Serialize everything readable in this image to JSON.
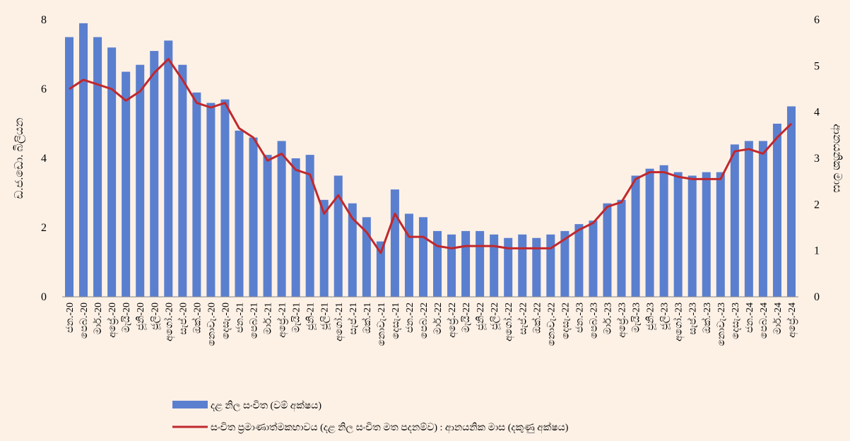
{
  "chart_data": {
    "type": "bar_line",
    "categories": [
      "ජන.-20",
      "පෙබ.-20",
      "මාර්.-20",
      "අප්‍රේ.-20",
      "මැයි-20",
      "ජූනි-20",
      "ජූලි-20",
      "අගෝ.-20",
      "සැප්.-20",
      "ඔක්.-20",
      "නොවැ.-20",
      "දෙසැ.-20",
      "ජන.-21",
      "පෙබ.-21",
      "මාර්.-21",
      "අප්‍රේ.-21",
      "මැයි-21",
      "ජූනි-21",
      "ජූලි-21",
      "අගෝ.-21",
      "සැප්.-21",
      "ඔක්.-21",
      "නොවැ.-21",
      "දෙසැ.-21",
      "ජන.-22",
      "පෙබ.-22",
      "මාර්.-22",
      "අප්‍රේ.-22",
      "මැයි-22",
      "ජූනි-22",
      "ජූලි-22",
      "අගෝ.-22",
      "සැප්.-22",
      "ඔක්.-22",
      "නොවැ.-22",
      "දෙසැ.-22",
      "ජන.-23",
      "පෙබ.-23",
      "මාර්.-23",
      "අප්‍රේ.-23",
      "මැයි-23",
      "ජූනි-23",
      "ජූලි-23",
      "අගෝ.-23",
      "සැප්.-23",
      "ඔක්.-23",
      "නොවැ.-23",
      "දෙසැ.-23",
      "ජන.-24",
      "පෙබ.-24",
      "මාර්.-24",
      "අප්‍රේ.-24"
    ],
    "series": [
      {
        "name": "දළ නිල සංචිත (වම් අක්ෂය)",
        "type": "bar",
        "color": "#5b7fcf",
        "values": [
          7.5,
          7.9,
          7.5,
          7.2,
          6.5,
          6.7,
          7.1,
          7.4,
          6.7,
          5.9,
          5.6,
          5.7,
          4.8,
          4.6,
          4.1,
          4.5,
          4.0,
          4.1,
          2.8,
          3.5,
          2.7,
          2.3,
          1.6,
          3.1,
          2.4,
          2.3,
          1.9,
          1.8,
          1.9,
          1.9,
          1.8,
          1.7,
          1.8,
          1.7,
          1.8,
          1.9,
          2.1,
          2.2,
          2.7,
          2.8,
          3.5,
          3.7,
          3.8,
          3.6,
          3.5,
          3.6,
          3.6,
          4.4,
          4.5,
          4.5,
          5.0,
          5.5
        ]
      },
      {
        "name": "සංචිත ප්‍රමාණාත්මකභාවය (දළ නිල සංචිත මත පදනම්ව) : ආනයනික මාස (දකුණු අක්ෂය)",
        "type": "line",
        "axis": "y2",
        "color": "#c0282d",
        "values": [
          4.5,
          4.7,
          4.6,
          4.5,
          4.25,
          4.45,
          4.85,
          5.15,
          4.7,
          4.2,
          4.1,
          4.2,
          3.65,
          3.45,
          2.95,
          3.1,
          2.75,
          2.65,
          1.8,
          2.2,
          1.7,
          1.4,
          0.95,
          1.8,
          1.3,
          1.3,
          1.1,
          1.05,
          1.1,
          1.1,
          1.1,
          1.05,
          1.05,
          1.05,
          1.05,
          1.25,
          1.45,
          1.6,
          1.95,
          2.05,
          2.55,
          2.7,
          2.7,
          2.6,
          2.55,
          2.55,
          2.55,
          3.15,
          3.2,
          3.1,
          3.45,
          3.75
        ]
      }
    ],
    "ylabel": "ඩ.ජ.ඩො. බිලියන",
    "y2label": "ආනයනික මාස",
    "ylim": [
      0,
      8
    ],
    "yticks": [
      0,
      2,
      4,
      6,
      8
    ],
    "y2lim": [
      0,
      6
    ],
    "y2ticks": [
      0,
      1,
      2,
      3,
      4,
      5,
      6
    ]
  }
}
